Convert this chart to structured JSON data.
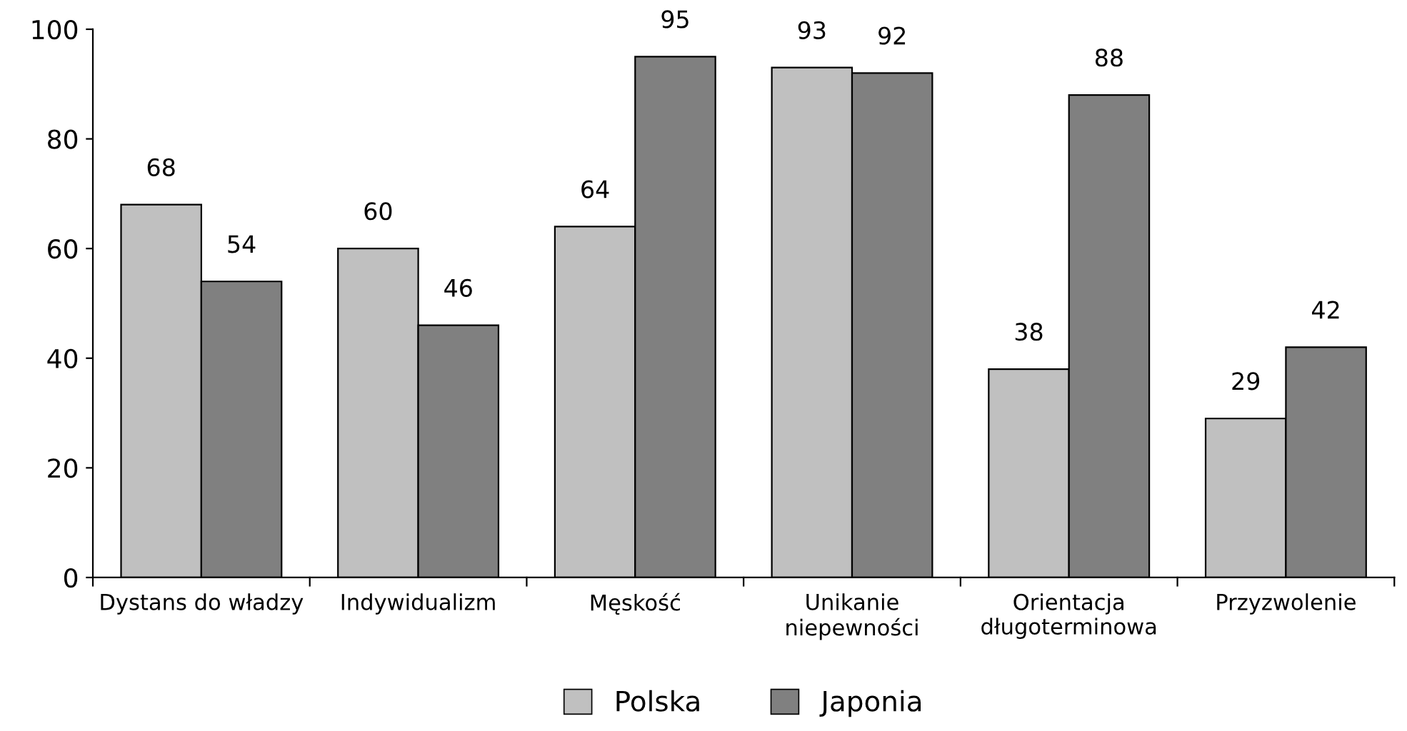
{
  "chart_data": {
    "type": "bar",
    "categories": [
      "Dystans do władzy",
      "Indywidualizm",
      "Męskość",
      "Unikanie\nniepewności",
      "Orientacja\ndługoterminowa",
      "Przyzwolenie"
    ],
    "series": [
      {
        "name": "Polska",
        "color": "#c0c0c0",
        "values": [
          68,
          60,
          64,
          93,
          38,
          29
        ]
      },
      {
        "name": "Japonia",
        "color": "#808080",
        "values": [
          54,
          46,
          95,
          92,
          88,
          42
        ]
      }
    ],
    "ylim": [
      0,
      100
    ],
    "yticks": [
      0,
      20,
      40,
      60,
      80,
      100
    ],
    "grid": false,
    "legend": "bottom",
    "data_labels": true
  }
}
